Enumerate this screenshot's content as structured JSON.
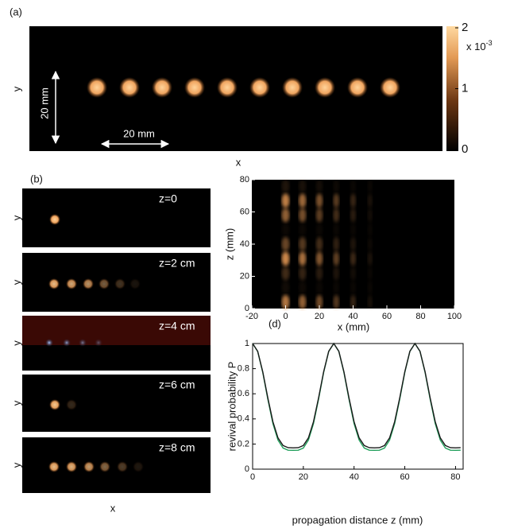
{
  "chart_data": [
    {
      "type": "image",
      "label": "(a)",
      "xlabel": "x",
      "ylabel": "y",
      "scalebar_labels": [
        "20 mm",
        "20 mm"
      ],
      "colorbar": {
        "clim": [
          0,
          2
        ],
        "ticks": [
          0,
          1,
          2
        ],
        "exponent_label": "x 10",
        "exponent": "-3"
      }
    },
    {
      "type": "image-stack",
      "label": "(b)",
      "xlabel": "x",
      "ylabel": "y",
      "frames": [
        "z=0",
        "z=2 cm",
        "z=4 cm",
        "z=6 cm",
        "z=8 cm"
      ]
    },
    {
      "type": "heatmap",
      "xlabel": "x (mm)",
      "ylabel": "z (mm)",
      "xlim": [
        -20,
        100
      ],
      "xticks": [
        -20,
        0,
        20,
        40,
        60,
        80,
        100
      ],
      "ylim": [
        0,
        80
      ],
      "yticks": [
        0,
        20,
        40,
        60,
        80
      ]
    },
    {
      "type": "line",
      "label": "(d)",
      "xlabel": "propagation distance z (mm)",
      "ylabel": "revival probability P",
      "xlim": [
        0,
        83
      ],
      "xticks": [
        0,
        20,
        40,
        60,
        80
      ],
      "ylim": [
        0,
        1
      ],
      "yticks": [
        0,
        0.2,
        0.4,
        0.6,
        0.8,
        1
      ],
      "x": [
        0,
        2,
        4,
        6,
        8,
        10,
        12,
        14,
        16,
        18,
        20,
        22,
        24,
        26,
        28,
        30,
        32,
        34,
        36,
        38,
        40,
        42,
        44,
        46,
        48,
        50,
        52,
        54,
        56,
        58,
        60,
        62,
        64,
        66,
        68,
        70,
        72,
        74,
        76,
        78,
        80,
        82
      ],
      "series": [
        {
          "color": "#1a1a1a",
          "values": [
            1,
            0.938,
            0.775,
            0.567,
            0.378,
            0.249,
            0.188,
            0.171,
            0.17,
            0.171,
            0.188,
            0.249,
            0.378,
            0.567,
            0.775,
            0.938,
            1,
            0.938,
            0.775,
            0.567,
            0.378,
            0.249,
            0.188,
            0.171,
            0.17,
            0.171,
            0.188,
            0.249,
            0.378,
            0.567,
            0.775,
            0.938,
            1,
            0.938,
            0.775,
            0.567,
            0.378,
            0.249,
            0.188,
            0.171,
            0.17,
            0.171
          ]
        },
        {
          "color": "#1f9e5a",
          "values": [
            1,
            0.937,
            0.769,
            0.556,
            0.363,
            0.231,
            0.168,
            0.151,
            0.15,
            0.151,
            0.168,
            0.231,
            0.363,
            0.556,
            0.769,
            0.937,
            1,
            0.937,
            0.769,
            0.556,
            0.363,
            0.231,
            0.168,
            0.151,
            0.15,
            0.151,
            0.168,
            0.231,
            0.363,
            0.556,
            0.769,
            0.937,
            1,
            0.937,
            0.769,
            0.556,
            0.363,
            0.231,
            0.168,
            0.151,
            0.15,
            0.151
          ]
        }
      ]
    }
  ]
}
